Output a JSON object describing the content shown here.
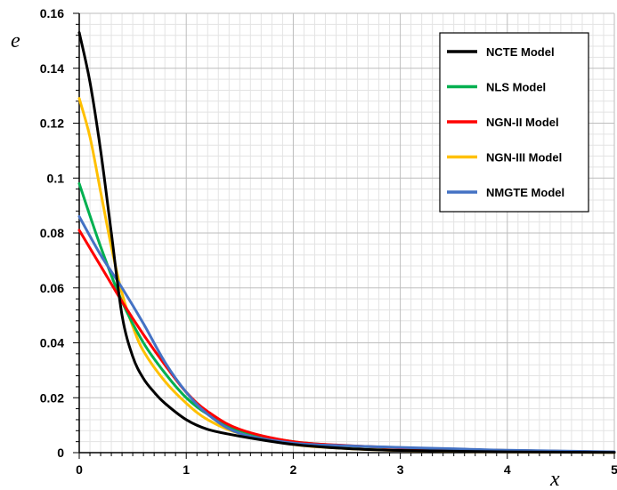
{
  "chart_data": {
    "type": "line",
    "xlabel": "x",
    "ylabel": "e",
    "xlim": [
      0,
      5
    ],
    "ylim": [
      0,
      0.16
    ],
    "x_ticks": [
      "0",
      "1",
      "2",
      "3",
      "4",
      "5"
    ],
    "y_ticks": [
      "0",
      "0.02",
      "0.04",
      "0.06",
      "0.08",
      "0.1",
      "0.12",
      "0.14",
      "0.16"
    ],
    "grid": true,
    "legend_position": "top-right",
    "series": [
      {
        "name": "NCTE Model",
        "color": "#000000",
        "x": [
          0,
          0.1,
          0.2,
          0.3,
          0.4,
          0.5,
          0.6,
          0.7,
          0.8,
          1.0,
          1.2,
          1.5,
          2.0,
          2.5,
          3.0,
          4.0,
          5.0
        ],
        "y": [
          0.153,
          0.135,
          0.11,
          0.08,
          0.05,
          0.035,
          0.027,
          0.022,
          0.018,
          0.012,
          0.0085,
          0.006,
          0.003,
          0.0015,
          0.0008,
          0.0003,
          0.0001
        ]
      },
      {
        "name": "NLS Model",
        "color": "#00b050",
        "x": [
          0,
          0.2,
          0.4,
          0.6,
          0.8,
          1.0,
          1.2,
          1.5,
          2.0,
          2.5,
          3.0,
          3.5,
          4.0,
          5.0
        ],
        "y": [
          0.098,
          0.075,
          0.055,
          0.04,
          0.029,
          0.02,
          0.014,
          0.008,
          0.004,
          0.0025,
          0.0018,
          0.0012,
          0.0008,
          0.0002
        ]
      },
      {
        "name": "NGN-II Model",
        "color": "#ff0000",
        "x": [
          0,
          0.2,
          0.4,
          0.6,
          0.8,
          1.0,
          1.2,
          1.5,
          2.0,
          2.5,
          3.0,
          3.5,
          4.0,
          5.0
        ],
        "y": [
          0.081,
          0.068,
          0.055,
          0.043,
          0.032,
          0.022,
          0.015,
          0.0085,
          0.004,
          0.0026,
          0.0018,
          0.0012,
          0.0008,
          0.0002
        ]
      },
      {
        "name": "NGN-III Model",
        "color": "#ffc000",
        "x": [
          0,
          0.1,
          0.2,
          0.3,
          0.4,
          0.5,
          0.6,
          0.8,
          1.0,
          1.2,
          1.5,
          2.0,
          2.5,
          3.0,
          4.0,
          5.0
        ],
        "y": [
          0.129,
          0.115,
          0.095,
          0.075,
          0.058,
          0.046,
          0.037,
          0.026,
          0.018,
          0.012,
          0.007,
          0.003,
          0.0015,
          0.0008,
          0.0003,
          0.0001
        ]
      },
      {
        "name": "NMGTE Model",
        "color": "#4472c4",
        "x": [
          0,
          0.2,
          0.4,
          0.6,
          0.8,
          1.0,
          1.2,
          1.5,
          2.0,
          2.5,
          3.0,
          3.5,
          4.0,
          5.0
        ],
        "y": [
          0.086,
          0.072,
          0.06,
          0.047,
          0.033,
          0.022,
          0.014,
          0.007,
          0.0035,
          0.0025,
          0.0019,
          0.0014,
          0.0009,
          0.0003
        ]
      }
    ]
  }
}
